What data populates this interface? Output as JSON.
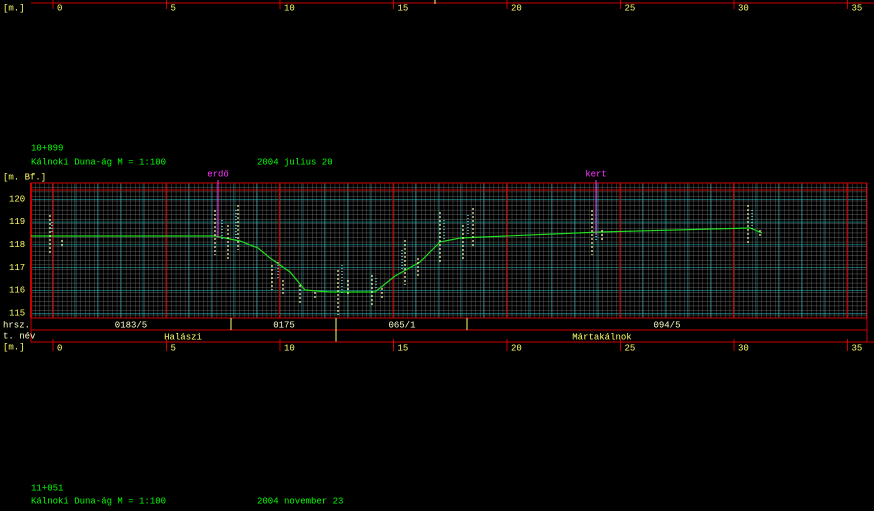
{
  "top_ruler": {
    "unit": "[m.]",
    "ticks": [
      0,
      5,
      10,
      15,
      20,
      25,
      30,
      35
    ]
  },
  "section_1": {
    "station": "10+899",
    "title": "Kálnoki Duna-ág M = 1:100",
    "date": "2004 julius 20",
    "axis_unit": "[m. Bf.]",
    "elevations": [
      120,
      119,
      118,
      117,
      116,
      115
    ],
    "markers": [
      "erdő",
      "kert"
    ],
    "parcel_row_label": "hrsz.",
    "parcels": [
      "0183/5",
      "0175",
      "065/1",
      "094/5"
    ],
    "place_row_label": "t. név",
    "places": [
      "Halászi",
      "Mártakálnok"
    ]
  },
  "bottom_ruler": {
    "unit": "[m.]",
    "ticks": [
      0,
      5,
      10,
      15,
      20,
      25,
      30,
      35
    ]
  },
  "section_2": {
    "station": "11+051",
    "title": "Kálnoki Duna-ág M = 1:100",
    "date": "2004 november 23"
  }
}
